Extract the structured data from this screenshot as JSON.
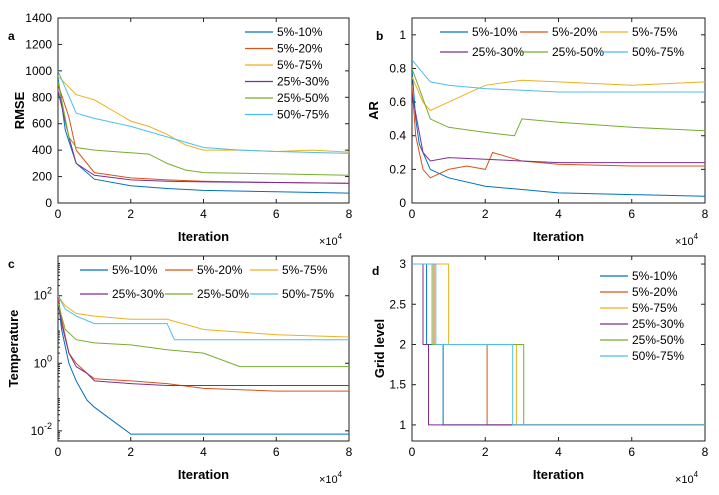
{
  "colors": {
    "5%-10%": "#0072BD",
    "5%-20%": "#D95319",
    "5%-75%": "#EDB120",
    "25%-30%": "#7E2F8E",
    "25%-50%": "#77AC30",
    "50%-75%": "#4DBEEE"
  },
  "chart_data": [
    {
      "panel": "a",
      "type": "line",
      "xlabel": "Iteration",
      "ylabel": "RMSE",
      "x_multiplier": "×10",
      "x_multiplier_exp": "4",
      "xlim": [
        0,
        8
      ],
      "ylim": [
        0,
        1400
      ],
      "xticks": [
        "0",
        "2",
        "4",
        "6",
        "8"
      ],
      "yticks": [
        "0",
        "200",
        "400",
        "600",
        "800",
        "1000",
        "1200",
        "1400"
      ],
      "legend_position": "top-right",
      "legend_columns": 1,
      "series": [
        {
          "name": "5%-10%",
          "x": [
            0,
            0.2,
            0.5,
            1,
            2,
            3,
            4,
            6,
            8
          ],
          "values": [
            950,
            550,
            300,
            180,
            130,
            110,
            95,
            85,
            75
          ]
        },
        {
          "name": "5%-20%",
          "x": [
            0,
            0.3,
            0.5,
            1,
            2,
            3,
            4,
            6,
            8
          ],
          "values": [
            900,
            650,
            400,
            230,
            190,
            175,
            165,
            155,
            148
          ]
        },
        {
          "name": "5%-75%",
          "x": [
            0,
            0.5,
            1,
            1.5,
            2,
            2.5,
            3,
            3.5,
            4,
            5,
            6,
            7,
            8
          ],
          "values": [
            960,
            820,
            780,
            700,
            620,
            580,
            520,
            440,
            400,
            400,
            390,
            400,
            385
          ]
        },
        {
          "name": "25%-30%",
          "x": [
            0,
            0.3,
            0.5,
            1,
            2,
            3,
            4,
            6,
            8
          ],
          "values": [
            850,
            500,
            300,
            210,
            175,
            165,
            160,
            155,
            150
          ]
        },
        {
          "name": "25%-50%",
          "x": [
            0,
            0.3,
            0.5,
            1,
            2,
            2.5,
            3,
            3.5,
            4,
            6,
            8
          ],
          "values": [
            920,
            500,
            420,
            400,
            380,
            370,
            300,
            250,
            230,
            220,
            210
          ]
        },
        {
          "name": "50%-75%",
          "x": [
            0,
            0.5,
            1,
            2,
            3,
            4,
            5,
            6,
            8
          ],
          "values": [
            1000,
            680,
            640,
            580,
            500,
            420,
            400,
            390,
            375
          ]
        }
      ]
    },
    {
      "panel": "b",
      "type": "line",
      "xlabel": "Iteration",
      "ylabel": "AR",
      "x_multiplier": "×10",
      "x_multiplier_exp": "4",
      "xlim": [
        0,
        8
      ],
      "ylim": [
        0,
        1.1
      ],
      "xticks": [
        "0",
        "2",
        "4",
        "6",
        "8"
      ],
      "yticks": [
        "0",
        "0.2",
        "0.4",
        "0.6",
        "0.8",
        "1"
      ],
      "legend_position": "top",
      "legend_columns": 3,
      "series": [
        {
          "name": "5%-10%",
          "x": [
            0,
            0.1,
            0.2,
            0.5,
            1,
            2,
            3,
            4,
            6,
            8
          ],
          "values": [
            0.8,
            0.5,
            0.35,
            0.2,
            0.15,
            0.1,
            0.08,
            0.06,
            0.05,
            0.04
          ]
        },
        {
          "name": "5%-20%",
          "x": [
            0,
            0.1,
            0.3,
            0.5,
            1,
            1.5,
            2,
            2.2,
            3,
            4,
            6,
            8
          ],
          "values": [
            0.7,
            0.4,
            0.2,
            0.15,
            0.2,
            0.22,
            0.2,
            0.3,
            0.25,
            0.23,
            0.22,
            0.22
          ]
        },
        {
          "name": "5%-75%",
          "x": [
            0,
            0.3,
            0.5,
            1,
            1.5,
            2,
            3,
            4,
            6,
            8
          ],
          "values": [
            0.75,
            0.6,
            0.55,
            0.6,
            0.65,
            0.7,
            0.73,
            0.72,
            0.7,
            0.72
          ]
        },
        {
          "name": "25%-30%",
          "x": [
            0,
            0.3,
            0.5,
            1,
            2,
            3,
            4,
            6,
            8
          ],
          "values": [
            0.65,
            0.3,
            0.25,
            0.27,
            0.26,
            0.25,
            0.24,
            0.24,
            0.24
          ]
        },
        {
          "name": "25%-50%",
          "x": [
            0,
            0.5,
            1,
            2,
            2.8,
            3,
            4,
            6,
            8
          ],
          "values": [
            0.8,
            0.5,
            0.45,
            0.42,
            0.4,
            0.5,
            0.48,
            0.45,
            0.43
          ]
        },
        {
          "name": "50%-75%",
          "x": [
            0,
            0.5,
            1,
            2,
            3,
            4,
            6,
            8
          ],
          "values": [
            0.85,
            0.72,
            0.7,
            0.68,
            0.67,
            0.66,
            0.66,
            0.66
          ]
        }
      ]
    },
    {
      "panel": "c",
      "type": "line",
      "xlabel": "Iteration",
      "ylabel": "Temperature",
      "x_multiplier": "×10",
      "x_multiplier_exp": "4",
      "xlim": [
        0,
        8
      ],
      "yscale": "log",
      "ylim": [
        0.005,
        1500
      ],
      "xticks": [
        "0",
        "2",
        "4",
        "6",
        "8"
      ],
      "yticks": [
        {
          "value": 0.01,
          "base": "10",
          "exp": "-2"
        },
        {
          "value": 1,
          "base": "10",
          "exp": "0"
        },
        {
          "value": 100,
          "base": "10",
          "exp": "2"
        }
      ],
      "legend_position": "top",
      "legend_columns": 3,
      "series": [
        {
          "name": "5%-10%",
          "x": [
            0,
            0.1,
            0.3,
            0.5,
            0.8,
            1,
            1.5,
            2,
            3,
            4,
            6,
            8
          ],
          "values": [
            80,
            10,
            1,
            0.3,
            0.08,
            0.05,
            0.02,
            0.008,
            0.008,
            0.008,
            0.008,
            0.008
          ]
        },
        {
          "name": "5%-20%",
          "x": [
            0,
            0.1,
            0.3,
            0.5,
            0.8,
            1,
            2,
            3,
            4,
            6,
            8
          ],
          "values": [
            90,
            20,
            2,
            1,
            0.5,
            0.35,
            0.3,
            0.25,
            0.18,
            0.15,
            0.15
          ]
        },
        {
          "name": "5%-75%",
          "x": [
            0,
            0.2,
            0.5,
            1,
            2,
            3,
            4,
            6,
            8
          ],
          "values": [
            100,
            50,
            30,
            25,
            20,
            20,
            10,
            7,
            6
          ]
        },
        {
          "name": "25%-30%",
          "x": [
            0,
            0.1,
            0.3,
            0.5,
            0.8,
            1,
            2,
            3,
            4,
            6,
            8
          ],
          "values": [
            70,
            15,
            2,
            0.8,
            0.5,
            0.3,
            0.25,
            0.22,
            0.22,
            0.22,
            0.22
          ]
        },
        {
          "name": "25%-50%",
          "x": [
            0,
            0.2,
            0.5,
            1,
            2,
            3,
            4,
            5,
            6,
            8
          ],
          "values": [
            60,
            10,
            5,
            4,
            3.5,
            2.5,
            2,
            0.8,
            0.8,
            0.8
          ]
        },
        {
          "name": "50%-75%",
          "x": [
            0,
            0.2,
            0.5,
            1,
            2,
            3,
            3.2,
            4,
            6,
            8
          ],
          "values": [
            100,
            40,
            25,
            15,
            15,
            15,
            5,
            5,
            5,
            5
          ]
        }
      ]
    },
    {
      "panel": "d",
      "type": "line",
      "xlabel": "Iteration",
      "ylabel": "Grid level",
      "x_multiplier": "×10",
      "x_multiplier_exp": "4",
      "xlim": [
        0,
        8
      ],
      "ylim": [
        0.8,
        3.1
      ],
      "xticks": [
        "0",
        "2",
        "4",
        "6",
        "8"
      ],
      "yticks": [
        "1",
        "1.5",
        "2",
        "2.5",
        "3"
      ],
      "legend_position": "top-right",
      "legend_columns": 1,
      "series": [
        {
          "name": "5%-10%",
          "x": [
            0,
            0.4,
            0.4,
            0.85,
            0.85,
            8
          ],
          "values": [
            3,
            3,
            2,
            2,
            1,
            1
          ]
        },
        {
          "name": "5%-20%",
          "x": [
            0,
            0.6,
            0.6,
            2.05,
            2.05,
            8
          ],
          "values": [
            3,
            3,
            2,
            2,
            1,
            1
          ]
        },
        {
          "name": "5%-75%",
          "x": [
            0,
            1,
            1,
            2.85,
            2.85,
            8
          ],
          "values": [
            3,
            3,
            2,
            2,
            1,
            1
          ]
        },
        {
          "name": "25%-30%",
          "x": [
            0,
            0.3,
            0.3,
            0.45,
            0.45,
            8
          ],
          "values": [
            3,
            3,
            2,
            2,
            1,
            1
          ]
        },
        {
          "name": "25%-50%",
          "x": [
            0,
            0.55,
            0.55,
            3.05,
            3.05,
            8
          ],
          "values": [
            3,
            3,
            2,
            2,
            1,
            1
          ]
        },
        {
          "name": "50%-75%",
          "x": [
            0,
            0.65,
            0.65,
            2.75,
            2.75,
            8
          ],
          "values": [
            3,
            3,
            2,
            2,
            1,
            1
          ]
        }
      ]
    }
  ]
}
